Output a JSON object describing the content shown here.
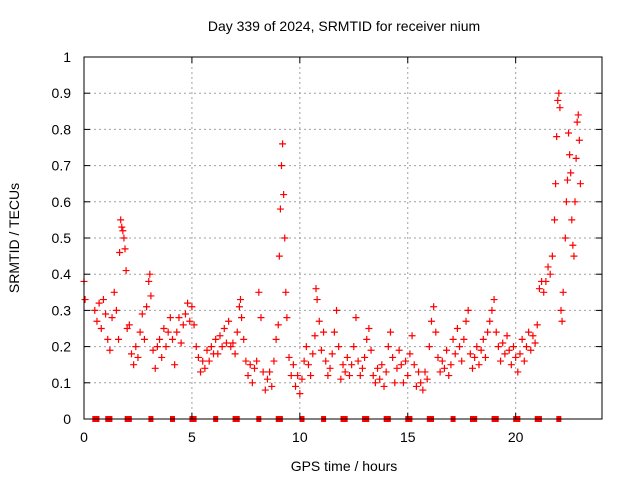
{
  "chart_data": {
    "type": "scatter",
    "title": "Day 339 of 2024, SRMTID for receiver nium",
    "xlabel": "GPS time / hours",
    "ylabel": "SRMTID / TECUs",
    "xlim": [
      0,
      24
    ],
    "ylim": [
      0,
      1
    ],
    "x_ticks": [
      0,
      5,
      10,
      15,
      20
    ],
    "x_tick_labels": [
      "0",
      "5",
      "10",
      "15",
      "20"
    ],
    "y_ticks": [
      0,
      0.1,
      0.2,
      0.3,
      0.4,
      0.5,
      0.6,
      0.7,
      0.8,
      0.9,
      1
    ],
    "y_tick_labels": [
      "0",
      "0.1",
      "0.2",
      "0.3",
      "0.4",
      "0.5",
      "0.6",
      "0.7",
      "0.8",
      "0.9",
      "1"
    ],
    "grid": true,
    "marker": "plus",
    "color": "#ff0000",
    "series": [
      {
        "name": "SRMTID",
        "points": [
          [
            0.0,
            0.38
          ],
          [
            0.05,
            0.33
          ],
          [
            0.5,
            0.3
          ],
          [
            0.6,
            0.27
          ],
          [
            0.7,
            0.32
          ],
          [
            0.8,
            0.25
          ],
          [
            0.9,
            0.33
          ],
          [
            1.0,
            0.29
          ],
          [
            1.1,
            0.22
          ],
          [
            1.2,
            0.19
          ],
          [
            1.3,
            0.28
          ],
          [
            1.4,
            0.35
          ],
          [
            1.5,
            0.3
          ],
          [
            1.6,
            0.22
          ],
          [
            1.65,
            0.46
          ],
          [
            1.7,
            0.55
          ],
          [
            1.75,
            0.53
          ],
          [
            1.8,
            0.52
          ],
          [
            1.85,
            0.5
          ],
          [
            1.9,
            0.47
          ],
          [
            1.95,
            0.41
          ],
          [
            2.0,
            0.25
          ],
          [
            2.1,
            0.26
          ],
          [
            2.2,
            0.18
          ],
          [
            2.3,
            0.15
          ],
          [
            2.4,
            0.2
          ],
          [
            2.5,
            0.17
          ],
          [
            2.6,
            0.24
          ],
          [
            2.7,
            0.29
          ],
          [
            2.8,
            0.22
          ],
          [
            2.9,
            0.31
          ],
          [
            3.0,
            0.38
          ],
          [
            3.05,
            0.4
          ],
          [
            3.1,
            0.34
          ],
          [
            3.2,
            0.19
          ],
          [
            3.3,
            0.14
          ],
          [
            3.4,
            0.2
          ],
          [
            3.5,
            0.22
          ],
          [
            3.6,
            0.17
          ],
          [
            3.7,
            0.25
          ],
          [
            3.8,
            0.2
          ],
          [
            3.9,
            0.24
          ],
          [
            4.0,
            0.28
          ],
          [
            4.1,
            0.22
          ],
          [
            4.2,
            0.15
          ],
          [
            4.3,
            0.24
          ],
          [
            4.4,
            0.28
          ],
          [
            4.5,
            0.21
          ],
          [
            4.6,
            0.26
          ],
          [
            4.7,
            0.29
          ],
          [
            4.8,
            0.32
          ],
          [
            4.9,
            0.27
          ],
          [
            5.0,
            0.31
          ],
          [
            5.1,
            0.26
          ],
          [
            5.2,
            0.2
          ],
          [
            5.3,
            0.17
          ],
          [
            5.4,
            0.13
          ],
          [
            5.5,
            0.16
          ],
          [
            5.6,
            0.14
          ],
          [
            5.7,
            0.19
          ],
          [
            5.8,
            0.16
          ],
          [
            5.9,
            0.2
          ],
          [
            6.0,
            0.18
          ],
          [
            6.1,
            0.22
          ],
          [
            6.2,
            0.18
          ],
          [
            6.3,
            0.23
          ],
          [
            6.4,
            0.2
          ],
          [
            6.5,
            0.25
          ],
          [
            6.6,
            0.21
          ],
          [
            6.7,
            0.27
          ],
          [
            6.8,
            0.2
          ],
          [
            6.9,
            0.21
          ],
          [
            7.0,
            0.18
          ],
          [
            7.1,
            0.24
          ],
          [
            7.2,
            0.31
          ],
          [
            7.25,
            0.33
          ],
          [
            7.3,
            0.28
          ],
          [
            7.4,
            0.22
          ],
          [
            7.5,
            0.16
          ],
          [
            7.6,
            0.12
          ],
          [
            7.7,
            0.15
          ],
          [
            7.8,
            0.1
          ],
          [
            7.9,
            0.14
          ],
          [
            8.0,
            0.16
          ],
          [
            8.1,
            0.35
          ],
          [
            8.2,
            0.28
          ],
          [
            8.3,
            0.13
          ],
          [
            8.4,
            0.08
          ],
          [
            8.5,
            0.11
          ],
          [
            8.6,
            0.13
          ],
          [
            8.7,
            0.09
          ],
          [
            8.8,
            0.16
          ],
          [
            8.9,
            0.22
          ],
          [
            9.0,
            0.26
          ],
          [
            9.05,
            0.45
          ],
          [
            9.1,
            0.58
          ],
          [
            9.15,
            0.7
          ],
          [
            9.2,
            0.76
          ],
          [
            9.25,
            0.62
          ],
          [
            9.3,
            0.5
          ],
          [
            9.35,
            0.35
          ],
          [
            9.4,
            0.28
          ],
          [
            9.5,
            0.17
          ],
          [
            9.6,
            0.12
          ],
          [
            9.7,
            0.15
          ],
          [
            9.8,
            0.09
          ],
          [
            9.9,
            0.12
          ],
          [
            10.0,
            0.07
          ],
          [
            10.1,
            0.11
          ],
          [
            10.2,
            0.16
          ],
          [
            10.3,
            0.2
          ],
          [
            10.4,
            0.15
          ],
          [
            10.5,
            0.12
          ],
          [
            10.6,
            0.18
          ],
          [
            10.7,
            0.23
          ],
          [
            10.75,
            0.36
          ],
          [
            10.8,
            0.33
          ],
          [
            10.9,
            0.27
          ],
          [
            11.0,
            0.19
          ],
          [
            11.1,
            0.24
          ],
          [
            11.2,
            0.16
          ],
          [
            11.3,
            0.12
          ],
          [
            11.4,
            0.14
          ],
          [
            11.5,
            0.18
          ],
          [
            11.6,
            0.24
          ],
          [
            11.7,
            0.3
          ],
          [
            11.8,
            0.2
          ],
          [
            11.9,
            0.11
          ],
          [
            12.0,
            0.15
          ],
          [
            12.1,
            0.13
          ],
          [
            12.2,
            0.17
          ],
          [
            12.3,
            0.12
          ],
          [
            12.4,
            0.15
          ],
          [
            12.5,
            0.2
          ],
          [
            12.6,
            0.28
          ],
          [
            12.7,
            0.16
          ],
          [
            12.8,
            0.12
          ],
          [
            12.9,
            0.14
          ],
          [
            13.0,
            0.17
          ],
          [
            13.1,
            0.22
          ],
          [
            13.2,
            0.25
          ],
          [
            13.3,
            0.19
          ],
          [
            13.4,
            0.12
          ],
          [
            13.5,
            0.1
          ],
          [
            13.6,
            0.14
          ],
          [
            13.7,
            0.11
          ],
          [
            13.8,
            0.15
          ],
          [
            13.9,
            0.09
          ],
          [
            14.0,
            0.13
          ],
          [
            14.1,
            0.2
          ],
          [
            14.2,
            0.24
          ],
          [
            14.3,
            0.17
          ],
          [
            14.4,
            0.1
          ],
          [
            14.5,
            0.14
          ],
          [
            14.6,
            0.19
          ],
          [
            14.7,
            0.15
          ],
          [
            14.8,
            0.1
          ],
          [
            14.9,
            0.16
          ],
          [
            15.0,
            0.12
          ],
          [
            15.1,
            0.18
          ],
          [
            15.2,
            0.23
          ],
          [
            15.3,
            0.15
          ],
          [
            15.4,
            0.09
          ],
          [
            15.5,
            0.13
          ],
          [
            15.6,
            0.1
          ],
          [
            15.7,
            0.08
          ],
          [
            15.8,
            0.13
          ],
          [
            15.9,
            0.11
          ],
          [
            16.0,
            0.2
          ],
          [
            16.1,
            0.27
          ],
          [
            16.2,
            0.31
          ],
          [
            16.3,
            0.24
          ],
          [
            16.4,
            0.17
          ],
          [
            16.5,
            0.13
          ],
          [
            16.6,
            0.16
          ],
          [
            16.7,
            0.14
          ],
          [
            16.8,
            0.19
          ],
          [
            16.9,
            0.12
          ],
          [
            17.0,
            0.15
          ],
          [
            17.1,
            0.22
          ],
          [
            17.2,
            0.18
          ],
          [
            17.3,
            0.25
          ],
          [
            17.4,
            0.2
          ],
          [
            17.5,
            0.16
          ],
          [
            17.6,
            0.22
          ],
          [
            17.7,
            0.27
          ],
          [
            17.8,
            0.3
          ],
          [
            17.9,
            0.18
          ],
          [
            18.0,
            0.14
          ],
          [
            18.1,
            0.17
          ],
          [
            18.2,
            0.2
          ],
          [
            18.3,
            0.15
          ],
          [
            18.4,
            0.19
          ],
          [
            18.5,
            0.22
          ],
          [
            18.6,
            0.17
          ],
          [
            18.7,
            0.24
          ],
          [
            18.8,
            0.27
          ],
          [
            18.9,
            0.3
          ],
          [
            19.0,
            0.33
          ],
          [
            19.1,
            0.24
          ],
          [
            19.2,
            0.2
          ],
          [
            19.3,
            0.16
          ],
          [
            19.4,
            0.21
          ],
          [
            19.5,
            0.18
          ],
          [
            19.6,
            0.23
          ],
          [
            19.7,
            0.19
          ],
          [
            19.8,
            0.15
          ],
          [
            19.9,
            0.2
          ],
          [
            20.0,
            0.17
          ],
          [
            20.1,
            0.13
          ],
          [
            20.2,
            0.18
          ],
          [
            20.3,
            0.22
          ],
          [
            20.4,
            0.16
          ],
          [
            20.5,
            0.2
          ],
          [
            20.6,
            0.24
          ],
          [
            20.7,
            0.19
          ],
          [
            20.8,
            0.23
          ],
          [
            20.9,
            0.21
          ],
          [
            21.0,
            0.26
          ],
          [
            21.1,
            0.36
          ],
          [
            21.2,
            0.38
          ],
          [
            21.3,
            0.35
          ],
          [
            21.4,
            0.38
          ],
          [
            21.5,
            0.42
          ],
          [
            21.6,
            0.4
          ],
          [
            21.7,
            0.45
          ],
          [
            21.8,
            0.55
          ],
          [
            21.85,
            0.65
          ],
          [
            21.9,
            0.78
          ],
          [
            21.95,
            0.88
          ],
          [
            22.0,
            0.9
          ],
          [
            22.05,
            0.86
          ],
          [
            22.1,
            0.3
          ],
          [
            22.15,
            0.27
          ],
          [
            22.2,
            0.35
          ],
          [
            22.3,
            0.5
          ],
          [
            22.35,
            0.6
          ],
          [
            22.4,
            0.66
          ],
          [
            22.45,
            0.79
          ],
          [
            22.5,
            0.73
          ],
          [
            22.55,
            0.68
          ],
          [
            22.6,
            0.55
          ],
          [
            22.65,
            0.48
          ],
          [
            22.7,
            0.45
          ],
          [
            22.75,
            0.6
          ],
          [
            22.8,
            0.72
          ],
          [
            22.85,
            0.82
          ],
          [
            22.9,
            0.84
          ],
          [
            22.95,
            0.77
          ],
          [
            23.0,
            0.65
          ]
        ]
      }
    ],
    "zero_markers_x": [
      0.5,
      0.6,
      1.1,
      1.2,
      2.0,
      2.1,
      3.1,
      4.1,
      5.0,
      5.1,
      6.1,
      7.0,
      7.1,
      8.1,
      9.0,
      9.1,
      10.1,
      11.1,
      12.0,
      12.1,
      13.0,
      13.1,
      14.0,
      14.1,
      15.0,
      15.1,
      16.0,
      16.1,
      17.1,
      18.0,
      18.1,
      19.0,
      19.1,
      20.0,
      20.1,
      21.0,
      21.1,
      22.0
    ]
  }
}
